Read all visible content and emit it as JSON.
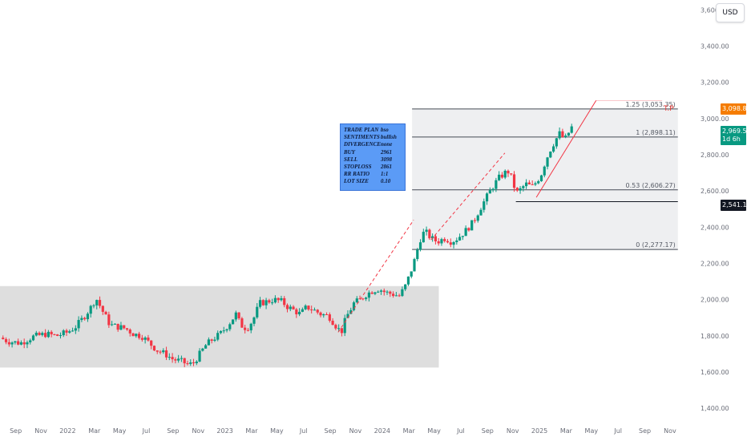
{
  "toolbar": {
    "currency": "USD"
  },
  "chart_data": {
    "type": "candlestick",
    "x_axis": {
      "ticks": [
        "Sep",
        "Nov",
        "2022",
        "Mar",
        "May",
        "Jul",
        "Sep",
        "Nov",
        "2023",
        "Mar",
        "May",
        "Jul",
        "Sep",
        "Nov",
        "2024",
        "Mar",
        "May",
        "Jul",
        "Sep",
        "Nov",
        "2025",
        "Mar",
        "May",
        "Jul",
        "Sep",
        "Nov"
      ],
      "tick_dates": [
        2021.67,
        2021.83,
        2022.0,
        2022.17,
        2022.33,
        2022.5,
        2022.67,
        2022.83,
        2023.0,
        2023.17,
        2023.33,
        2023.5,
        2023.67,
        2023.83,
        2024.0,
        2024.17,
        2024.33,
        2024.5,
        2024.67,
        2024.83,
        2025.0,
        2025.17,
        2025.33,
        2025.5,
        2025.67,
        2025.83
      ],
      "range": [
        2021.57,
        2026.08
      ]
    },
    "y_axis": {
      "ticks": [
        1400,
        1600,
        1800,
        2000,
        2200,
        2400,
        2600,
        2800,
        3000,
        3200,
        3400,
        3600
      ],
      "tick_labels": [
        "1,400.00",
        "1,600.00",
        "1,800.00",
        "2,000.00",
        "2,200.00",
        "2,400.00",
        "2,600.00",
        "2,800.00",
        "3,000.00",
        "3,200.00",
        "3,400.00",
        "3,600.00"
      ],
      "range": [
        1330,
        3655
      ]
    },
    "colors": {
      "up": "#089981",
      "down": "#f23645",
      "zone": "#dcdcdc",
      "box": "#eeeff1",
      "trend": "#f23645"
    },
    "price_path": [
      [
        2021.57,
        1790
      ],
      [
        2021.62,
        1770
      ],
      [
        2021.7,
        1760
      ],
      [
        2021.78,
        1795
      ],
      [
        2021.86,
        1810
      ],
      [
        2021.93,
        1800
      ],
      [
        2022.0,
        1820
      ],
      [
        2022.05,
        1850
      ],
      [
        2022.1,
        1900
      ],
      [
        2022.15,
        1960
      ],
      [
        2022.18,
        2010
      ],
      [
        2022.22,
        1940
      ],
      [
        2022.27,
        1860
      ],
      [
        2022.32,
        1850
      ],
      [
        2022.37,
        1840
      ],
      [
        2022.42,
        1810
      ],
      [
        2022.47,
        1800
      ],
      [
        2022.52,
        1760
      ],
      [
        2022.57,
        1720
      ],
      [
        2022.62,
        1700
      ],
      [
        2022.67,
        1670
      ],
      [
        2022.72,
        1660
      ],
      [
        2022.77,
        1640
      ],
      [
        2022.8,
        1650
      ],
      [
        2022.84,
        1700
      ],
      [
        2022.88,
        1750
      ],
      [
        2022.92,
        1780
      ],
      [
        2022.97,
        1810
      ],
      [
        2023.02,
        1860
      ],
      [
        2023.07,
        1920
      ],
      [
        2023.1,
        1860
      ],
      [
        2023.14,
        1840
      ],
      [
        2023.18,
        1890
      ],
      [
        2023.22,
        1980
      ],
      [
        2023.27,
        1990
      ],
      [
        2023.31,
        2000
      ],
      [
        2023.36,
        1990
      ],
      [
        2023.4,
        1960
      ],
      [
        2023.44,
        1940
      ],
      [
        2023.48,
        1920
      ],
      [
        2023.52,
        1960
      ],
      [
        2023.57,
        1940
      ],
      [
        2023.61,
        1920
      ],
      [
        2023.66,
        1910
      ],
      [
        2023.71,
        1850
      ],
      [
        2023.74,
        1820
      ],
      [
        2023.77,
        1900
      ],
      [
        2023.82,
        1980
      ],
      [
        2023.86,
        2000
      ],
      [
        2023.9,
        2030
      ],
      [
        2023.94,
        2050
      ],
      [
        2023.98,
        2060
      ],
      [
        2024.02,
        2040
      ],
      [
        2024.07,
        2030
      ],
      [
        2024.11,
        2020
      ],
      [
        2024.15,
        2080
      ],
      [
        2024.18,
        2150
      ],
      [
        2024.21,
        2230
      ],
      [
        2024.24,
        2330
      ],
      [
        2024.27,
        2380
      ],
      [
        2024.31,
        2340
      ],
      [
        2024.35,
        2320
      ],
      [
        2024.4,
        2340
      ],
      [
        2024.44,
        2320
      ],
      [
        2024.48,
        2340
      ],
      [
        2024.53,
        2380
      ],
      [
        2024.58,
        2430
      ],
      [
        2024.62,
        2500
      ],
      [
        2024.66,
        2560
      ],
      [
        2024.7,
        2620
      ],
      [
        2024.74,
        2670
      ],
      [
        2024.78,
        2700
      ],
      [
        2024.81,
        2710
      ],
      [
        2024.83,
        2640
      ],
      [
        2024.86,
        2590
      ],
      [
        2024.89,
        2620
      ],
      [
        2024.92,
        2640
      ],
      [
        2024.95,
        2620
      ],
      [
        2024.98,
        2650
      ],
      [
        2025.01,
        2690
      ],
      [
        2025.04,
        2770
      ],
      [
        2025.07,
        2830
      ],
      [
        2025.1,
        2880
      ],
      [
        2025.13,
        2920
      ],
      [
        2025.16,
        2880
      ],
      [
        2025.19,
        2930
      ],
      [
        2025.21,
        2960
      ]
    ],
    "zones": [
      {
        "name": "consolidation-2022-2023",
        "x": [
          2021.57,
          2024.36
        ],
        "y": [
          1625,
          2075
        ]
      },
      {
        "name": "consolidation-2024-mid",
        "x": [
          2024.19,
          2024.54
        ],
        "y": [
          2290,
          2440
        ]
      },
      {
        "name": "consolidation-2024-late",
        "x": [
          2024.84,
          2025.04
        ],
        "y": [
          2565,
          2700
        ]
      },
      {
        "name": "projection-box",
        "x": [
          2024.19,
          2025.88
        ],
        "y": [
          2277.17,
          3053.35
        ]
      }
    ],
    "fib_levels": [
      {
        "label": "1.25 (3,053.35)",
        "value": 3053.35
      },
      {
        "label": "1 (2,898.11)",
        "value": 2898.11
      },
      {
        "label": "0.53 (2,606.27)",
        "value": 2606.27
      },
      {
        "label": "0 (2,277.17)",
        "value": 2277.17
      }
    ],
    "horizontal_line": {
      "value": 2541.16
    },
    "trend_lines": [
      {
        "from": [
          2023.72,
          1820
        ],
        "to": [
          2024.2,
          2440
        ],
        "style": "dashed"
      },
      {
        "from": [
          2024.31,
          2330
        ],
        "to": [
          2024.78,
          2810
        ],
        "style": "dashed"
      },
      {
        "from": [
          2024.98,
          2565
        ],
        "to": [
          2025.36,
          3100
        ],
        "style": "solid"
      },
      {
        "from": [
          2025.36,
          3100
        ],
        "to": [
          2025.78,
          3100
        ],
        "style": "thin"
      }
    ],
    "price_tags": {
      "tp": "3,098.85",
      "last": "2,969.50",
      "countdown": "1d 6h",
      "level": "2,541.16"
    },
    "annotations": {
      "tp_label": "T.P"
    }
  },
  "trade_plan": {
    "rows": [
      {
        "key": "TRADE PLAN",
        "value": "bso"
      },
      {
        "key": "SENTIMENTS",
        "value": "bullish"
      },
      {
        "key": "DIVERGENCE",
        "value": "none"
      },
      {
        "key": "BUY",
        "value": "2961"
      },
      {
        "key": "SELL",
        "value": "3098"
      },
      {
        "key": "STOPLOSS",
        "value": "2861"
      },
      {
        "key": "RR RATIO",
        "value": "1:1"
      },
      {
        "key": "LOT SIZE",
        "value": "0.10"
      }
    ]
  }
}
